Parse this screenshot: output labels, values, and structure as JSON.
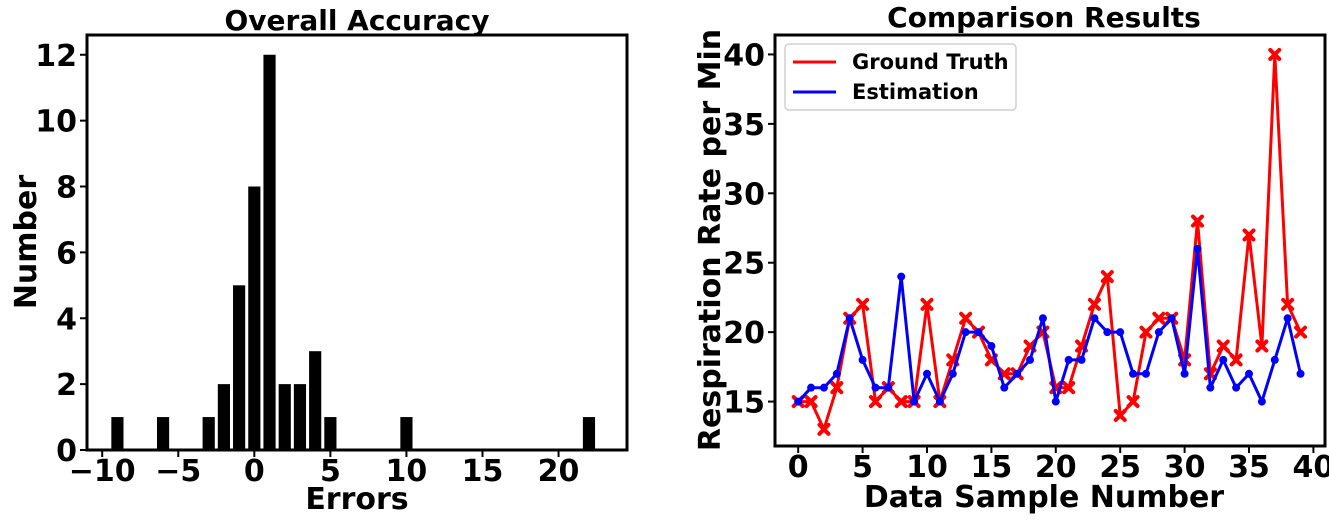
{
  "chart_data": [
    {
      "type": "bar",
      "title": "Overall Accuracy",
      "xlabel": "Errors",
      "ylabel": "Number",
      "xlim": [
        -11,
        24.5
      ],
      "ylim": [
        0,
        12.6
      ],
      "xticks": [
        -10,
        -5,
        0,
        5,
        10,
        15,
        20
      ],
      "xtick_labels": [
        "−10",
        "−5",
        "0",
        "5",
        "10",
        "15",
        "20"
      ],
      "yticks": [
        0,
        2,
        4,
        6,
        8,
        10,
        12
      ],
      "ytick_labels": [
        "0",
        "2",
        "4",
        "6",
        "8",
        "10",
        "12"
      ],
      "x": [
        -9,
        -6,
        -3,
        -2,
        -1,
        0,
        1,
        2,
        3,
        4,
        5,
        10,
        22
      ],
      "values": [
        1,
        1,
        1,
        2,
        5,
        8,
        12,
        2,
        2,
        3,
        1,
        1,
        1
      ],
      "bar_color": "#000000",
      "grid": false
    },
    {
      "type": "line",
      "title": "Comparison Results",
      "xlabel": "Data Sample Number",
      "ylabel": "Respiration Rate per Min",
      "xlim": [
        -1.8,
        40.9
      ],
      "ylim": [
        11.8,
        41.4
      ],
      "xticks": [
        0,
        5,
        10,
        15,
        20,
        25,
        30,
        35,
        40
      ],
      "xtick_labels": [
        "0",
        "5",
        "10",
        "15",
        "20",
        "25",
        "30",
        "35",
        "40"
      ],
      "yticks": [
        15,
        20,
        25,
        30,
        35,
        40
      ],
      "ytick_labels": [
        "15",
        "20",
        "25",
        "30",
        "35",
        "40"
      ],
      "x": [
        0,
        1,
        2,
        3,
        4,
        5,
        6,
        7,
        8,
        9,
        10,
        11,
        12,
        13,
        14,
        15,
        16,
        17,
        18,
        19,
        20,
        21,
        22,
        23,
        24,
        25,
        26,
        27,
        28,
        29,
        30,
        31,
        32,
        33,
        34,
        35,
        36,
        37,
        38,
        39
      ],
      "legend_position": "upper-left",
      "grid": false,
      "series": [
        {
          "name": "Ground Truth",
          "color": "#ff0000",
          "marker": "x",
          "values": [
            15,
            15,
            13,
            16,
            21,
            22,
            15,
            16,
            15,
            15,
            22,
            15,
            18,
            21,
            20,
            18,
            17,
            17,
            19,
            20,
            16,
            16,
            19,
            22,
            24,
            14,
            15,
            20,
            21,
            21,
            18,
            28,
            17,
            19,
            18,
            27,
            19,
            40,
            22,
            20
          ]
        },
        {
          "name": "Estimation",
          "color": "#0000ff",
          "marker": "o",
          "values": [
            15,
            16,
            16,
            17,
            21,
            18,
            16,
            16,
            24,
            15,
            17,
            15,
            17,
            20,
            20,
            19,
            16,
            17,
            18,
            21,
            15,
            18,
            18,
            21,
            20,
            20,
            17,
            17,
            20,
            21,
            17,
            26,
            16,
            18,
            16,
            17,
            15,
            18,
            21,
            17
          ]
        }
      ]
    }
  ]
}
